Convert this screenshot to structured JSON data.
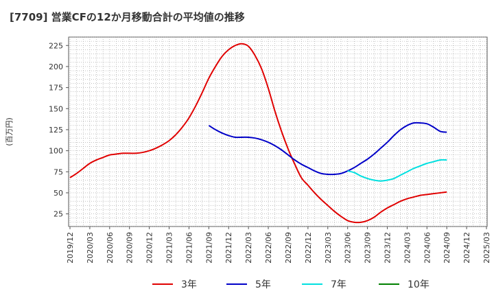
{
  "chart_data": {
    "type": "line",
    "title": "[7709]  営業CFの12か月移動合計の平均値の推移",
    "ylabel": "(百万円)",
    "xlabel": "",
    "ylim": [
      10,
      235
    ],
    "yticks": [
      25,
      50,
      75,
      100,
      125,
      150,
      175,
      200,
      225
    ],
    "x_tick_labels": [
      "2019/12",
      "2020/03",
      "2020/06",
      "2020/09",
      "2020/12",
      "2021/03",
      "2021/06",
      "2021/09",
      "2021/12",
      "2022/03",
      "2022/06",
      "2022/09",
      "2022/12",
      "2023/03",
      "2023/06",
      "2023/09",
      "2023/12",
      "2024/03",
      "2024/06",
      "2024/09",
      "2024/12",
      "2025/03"
    ],
    "grid": true,
    "legend_position": "bottom",
    "series": [
      {
        "name": "3年",
        "color": "#e00000",
        "x": [
          "2019/12",
          "2020/01",
          "2020/02",
          "2020/03",
          "2020/04",
          "2020/05",
          "2020/06",
          "2020/07",
          "2020/08",
          "2020/09",
          "2020/10",
          "2020/11",
          "2020/12",
          "2021/01",
          "2021/02",
          "2021/03",
          "2021/04",
          "2021/05",
          "2021/06",
          "2021/07",
          "2021/08",
          "2021/09",
          "2021/10",
          "2021/11",
          "2021/12",
          "2022/01",
          "2022/02",
          "2022/03",
          "2022/04",
          "2022/05",
          "2022/06",
          "2022/07",
          "2022/08",
          "2022/09",
          "2022/10",
          "2022/11",
          "2022/12",
          "2023/01",
          "2023/02",
          "2023/03",
          "2023/04",
          "2023/05",
          "2023/06",
          "2023/07",
          "2023/08",
          "2023/09",
          "2023/10",
          "2023/11",
          "2023/12",
          "2024/01",
          "2024/02",
          "2024/03",
          "2024/04",
          "2024/05",
          "2024/06",
          "2024/07",
          "2024/08",
          "2024/09"
        ],
        "values": [
          68,
          73,
          79,
          85,
          89,
          92,
          95,
          96,
          97,
          97,
          97,
          98,
          100,
          103,
          107,
          112,
          119,
          128,
          139,
          153,
          169,
          186,
          200,
          212,
          220,
          225,
          227,
          224,
          213,
          197,
          174,
          147,
          123,
          102,
          84,
          68,
          59,
          50,
          42,
          35,
          28,
          22,
          17,
          15,
          15,
          17,
          21,
          27,
          32,
          36,
          40,
          43,
          45,
          47,
          48,
          49,
          50,
          51
        ]
      },
      {
        "name": "5年",
        "color": "#0000c8",
        "x": [
          "2021/09",
          "2021/10",
          "2021/11",
          "2021/12",
          "2022/01",
          "2022/02",
          "2022/03",
          "2022/04",
          "2022/05",
          "2022/06",
          "2022/07",
          "2022/08",
          "2022/09",
          "2022/10",
          "2022/11",
          "2022/12",
          "2023/01",
          "2023/02",
          "2023/03",
          "2023/04",
          "2023/05",
          "2023/06",
          "2023/07",
          "2023/08",
          "2023/09",
          "2023/10",
          "2023/11",
          "2023/12",
          "2024/01",
          "2024/02",
          "2024/03",
          "2024/04",
          "2024/05",
          "2024/06",
          "2024/07",
          "2024/08",
          "2024/09"
        ],
        "values": [
          130,
          125,
          121,
          118,
          116,
          116,
          116,
          115,
          113,
          110,
          106,
          101,
          95,
          89,
          84,
          80,
          76,
          73,
          72,
          72,
          73,
          76,
          80,
          85,
          90,
          96,
          103,
          110,
          118,
          125,
          130,
          133,
          133,
          132,
          128,
          123,
          122
        ]
      },
      {
        "name": "7年",
        "color": "#00e0e0",
        "x": [
          "2023/06",
          "2023/07",
          "2023/08",
          "2023/09",
          "2023/10",
          "2023/11",
          "2023/12",
          "2024/01",
          "2024/02",
          "2024/03",
          "2024/04",
          "2024/05",
          "2024/06",
          "2024/07",
          "2024/08",
          "2024/09"
        ],
        "values": [
          76,
          74,
          70,
          67,
          65,
          64,
          65,
          67,
          71,
          75,
          79,
          82,
          85,
          87,
          89,
          89
        ]
      },
      {
        "name": "10年",
        "color": "#008000",
        "x": [],
        "values": []
      }
    ]
  }
}
